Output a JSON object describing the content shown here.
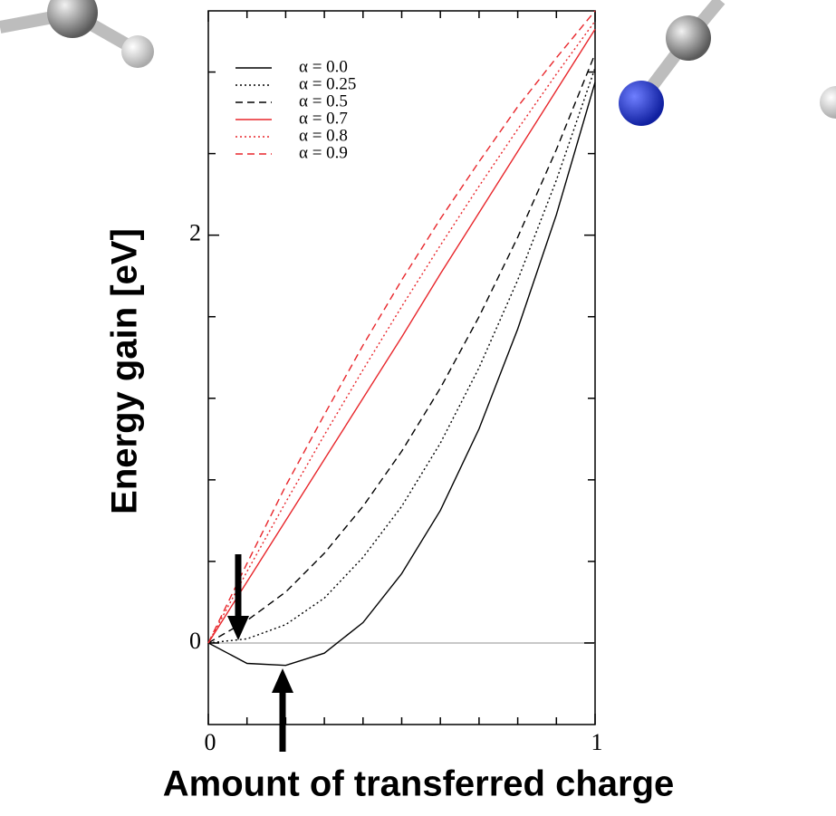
{
  "chart_data": {
    "type": "line",
    "xlabel": "Amount of transferred charge",
    "ylabel": "Energy gain [eV]",
    "x": [
      0,
      0.1,
      0.2,
      0.3,
      0.4,
      0.5,
      0.6,
      0.7,
      0.8,
      0.9,
      1
    ],
    "series": [
      {
        "name": "α = 0.0",
        "color": "#000000",
        "dash": "solid",
        "values": [
          0,
          -0.1,
          -0.11,
          -0.05,
          0.1,
          0.34,
          0.65,
          1.05,
          1.54,
          2.1,
          2.75
        ]
      },
      {
        "name": "α = 0.25",
        "color": "#000000",
        "dash": "dotted",
        "values": [
          0,
          0.02,
          0.09,
          0.22,
          0.42,
          0.67,
          0.98,
          1.35,
          1.78,
          2.27,
          2.82
        ]
      },
      {
        "name": "α = 0.5",
        "color": "#000000",
        "dash": "dashed",
        "values": [
          0,
          0.11,
          0.25,
          0.44,
          0.67,
          0.94,
          1.25,
          1.6,
          1.99,
          2.42,
          2.89
        ]
      },
      {
        "name": "α = 0.7",
        "color": "#e8262b",
        "dash": "solid",
        "values": [
          0,
          0.3,
          0.6,
          0.9,
          1.2,
          1.5,
          1.81,
          2.11,
          2.41,
          2.71,
          3.01
        ]
      },
      {
        "name": "α = 0.8",
        "color": "#e8262b",
        "dash": "dotted",
        "values": [
          0,
          0.35,
          0.69,
          1.02,
          1.34,
          1.65,
          1.95,
          2.24,
          2.52,
          2.79,
          3.05
        ]
      },
      {
        "name": "α = 0.9",
        "color": "#e8262b",
        "dash": "dashed",
        "values": [
          0,
          0.39,
          0.77,
          1.12,
          1.46,
          1.78,
          2.08,
          2.36,
          2.63,
          2.87,
          3.1
        ]
      }
    ],
    "xlim": [
      0,
      1
    ],
    "xticks": [
      0,
      1
    ],
    "xminor": [
      0.1,
      0.2,
      0.3,
      0.4,
      0.5,
      0.6,
      0.7,
      0.8,
      0.9
    ],
    "ylim": [
      -0.4,
      3.1
    ],
    "yticks": [
      0,
      2
    ],
    "yminor": [
      0.4,
      0.8,
      1.2,
      1.6,
      2.4,
      2.8
    ],
    "zero_line": true
  }
}
